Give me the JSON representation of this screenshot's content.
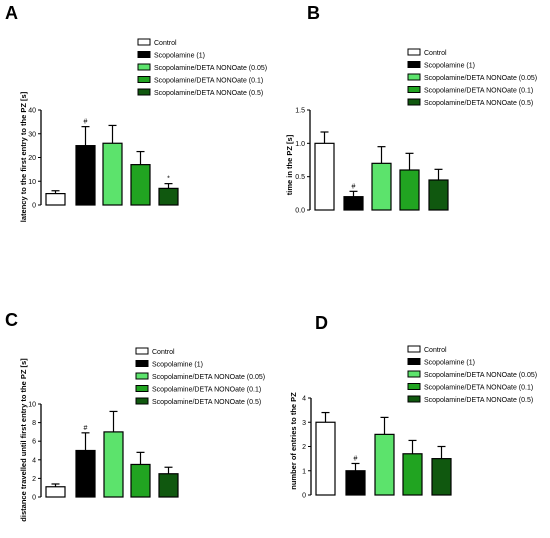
{
  "colors": {
    "control": "#ffffff",
    "scopolamine": "#000000",
    "deta_005": "#5ce36c",
    "deta_01": "#21a421",
    "deta_05": "#10580f",
    "axis": "#000000"
  },
  "chart_data": [
    {
      "type": "bar",
      "panel_label": "A",
      "ylabel": "latency to the first entry to the PZ [s]",
      "xlabel": "",
      "ylim": [
        0,
        40
      ],
      "yticks": [
        0,
        10,
        20,
        30,
        40
      ],
      "ytick_labels": [
        "0",
        "10",
        "20",
        "30",
        "40"
      ],
      "legend_position": "top-right",
      "categories": [
        "Control",
        "Scopolamine (1)",
        "Scopolamine/DETA NONOate (0.05)",
        "Scopolamine/DETA NONOate (0.1)",
        "Scopolamine/DETA NONOate (0.5)"
      ],
      "values": [
        4.8,
        25,
        26,
        17,
        7
      ],
      "errors": [
        1.2,
        8,
        7.5,
        5.5,
        2
      ],
      "annotations": [
        "",
        "#",
        "",
        "",
        "*"
      ],
      "grid": false
    },
    {
      "type": "bar",
      "panel_label": "B",
      "ylabel": "time in the PZ [s]",
      "xlabel": "",
      "ylim": [
        0,
        1.5
      ],
      "yticks": [
        0,
        0.5,
        1.0,
        1.5
      ],
      "ytick_labels": [
        "0.0",
        "0.5",
        "1.0",
        "1.5"
      ],
      "legend_position": "top-right",
      "categories": [
        "Control",
        "Scopolamine (1)",
        "Scopolamine/DETA NONOate (0.05)",
        "Scopolamine/DETA NONOate (0.1)",
        "Scopolamine/DETA NONOate (0.5)"
      ],
      "values": [
        1.0,
        0.2,
        0.7,
        0.6,
        0.45
      ],
      "errors": [
        0.17,
        0.08,
        0.25,
        0.25,
        0.16
      ],
      "annotations": [
        "",
        "#",
        "",
        "",
        ""
      ],
      "grid": false
    },
    {
      "type": "bar",
      "panel_label": "C",
      "ylabel": "distance travelled until first entry to the PZ [s]",
      "xlabel": "",
      "ylim": [
        0,
        10
      ],
      "yticks": [
        0,
        2,
        4,
        6,
        8,
        10
      ],
      "ytick_labels": [
        "0",
        "2",
        "4",
        "6",
        "8",
        "10"
      ],
      "legend_position": "top-right",
      "categories": [
        "Control",
        "Scopolamine (1)",
        "Scopolamine/DETA NONOate (0.05)",
        "Scopolamine/DETA NONOate (0.1)",
        "Scopolamine/DETA NONOate (0.5)"
      ],
      "values": [
        1.1,
        5.0,
        7.0,
        3.5,
        2.5
      ],
      "errors": [
        0.3,
        1.9,
        2.2,
        1.3,
        0.7
      ],
      "annotations": [
        "",
        "#",
        "",
        "",
        ""
      ],
      "grid": false
    },
    {
      "type": "bar",
      "panel_label": "D",
      "ylabel": "number of entries to the PZ",
      "xlabel": "",
      "ylim": [
        0,
        4
      ],
      "yticks": [
        0,
        1,
        2,
        3,
        4
      ],
      "ytick_labels": [
        "0",
        "1",
        "2",
        "3",
        "4"
      ],
      "legend_position": "top-right",
      "categories": [
        "Control",
        "Scopolamine (1)",
        "Scopolamine/DETA NONOate (0.05)",
        "Scopolamine/DETA NONOate (0.1)",
        "Scopolamine/DETA NONOate (0.5)"
      ],
      "values": [
        3.0,
        1.0,
        2.5,
        1.7,
        1.5
      ],
      "errors": [
        0.4,
        0.3,
        0.7,
        0.55,
        0.5
      ],
      "annotations": [
        "",
        "#",
        "",
        "",
        ""
      ],
      "grid": false
    }
  ]
}
